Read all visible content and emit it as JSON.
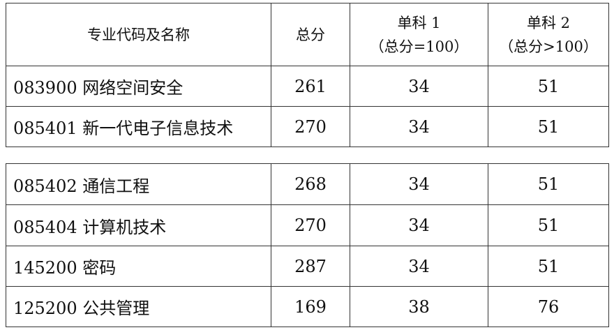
{
  "header": {
    "name": "专业代码及名称",
    "total": "总分",
    "s1_line1": "单科 1",
    "s1_line2": "（总分=100）",
    "s2_line1": "单科 2",
    "s2_line2": "（总分>100）"
  },
  "rows": [
    {
      "name": "083900 网络空间安全",
      "total": "261",
      "s1": "34",
      "s2": "51"
    },
    {
      "name": "085401 新一代电子信息技术",
      "total": "270",
      "s1": "34",
      "s2": "51"
    },
    {
      "name": "085402 通信工程",
      "total": "268",
      "s1": "34",
      "s2": "51"
    },
    {
      "name": "085404 计算机技术",
      "total": "270",
      "s1": "34",
      "s2": "51"
    },
    {
      "name": "145200 密码",
      "total": "287",
      "s1": "34",
      "s2": "51"
    },
    {
      "name": "125200 公共管理",
      "total": "169",
      "s1": "38",
      "s2": "76"
    }
  ]
}
